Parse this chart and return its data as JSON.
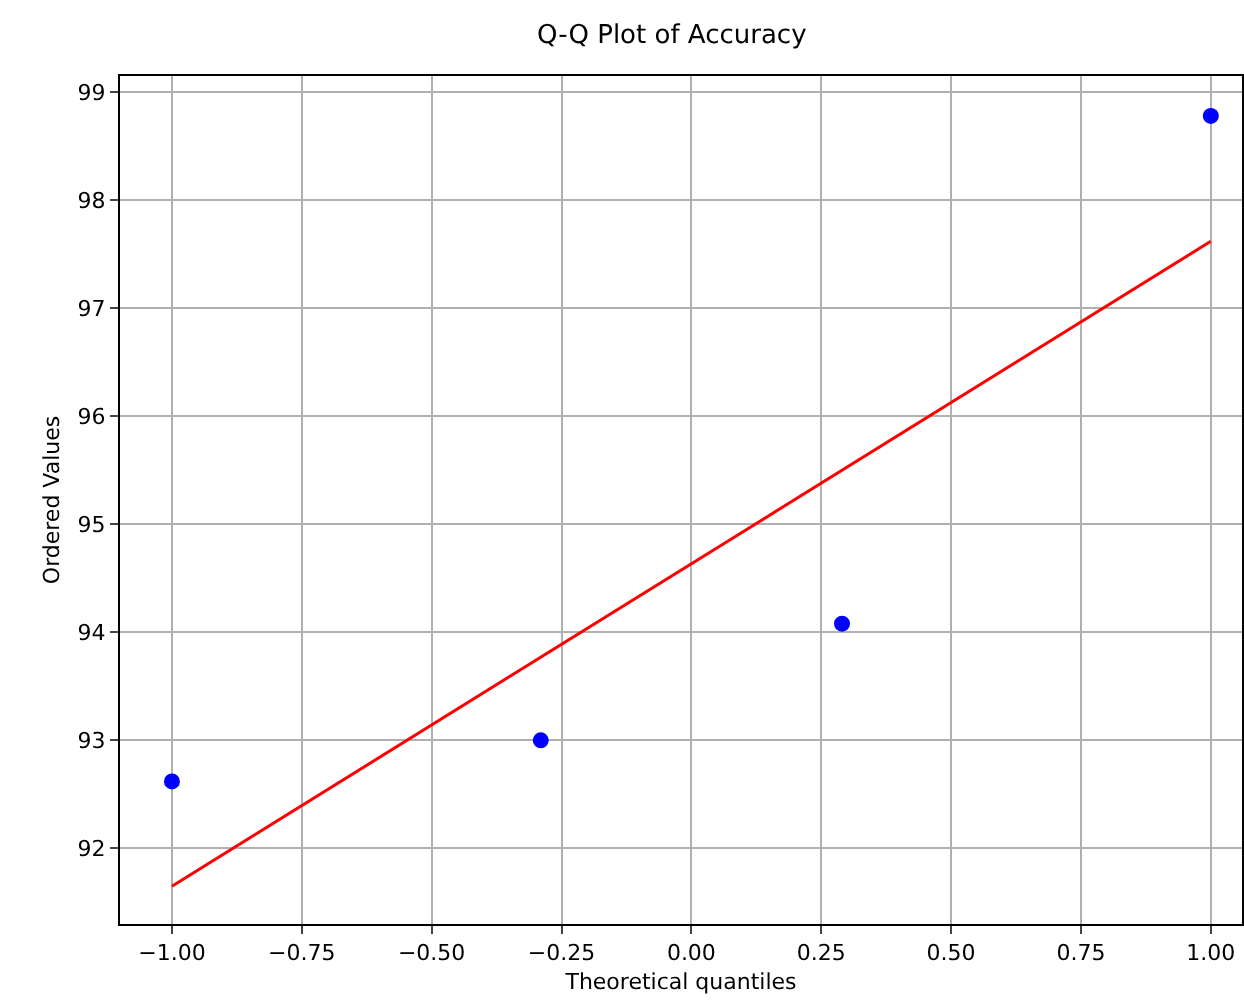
{
  "chart_data": {
    "type": "scatter",
    "title": "Q-Q Plot of Accuracy",
    "xlabel": "Theoretical quantiles",
    "ylabel": "Ordered Values",
    "series": [
      {
        "color": "#0000ff",
        "x": [
          -1.0,
          -0.29,
          0.29,
          1.0
        ],
        "values": [
          92.62,
          93.0,
          94.08,
          98.78
        ],
        "marker": "circle"
      },
      {
        "type": "line",
        "color": "#ff0000",
        "x": [
          -1.0,
          1.0
        ],
        "values": [
          91.65,
          97.62
        ],
        "line_style": "solid"
      }
    ],
    "xlim": [
      -1.1,
      1.06
    ],
    "xticks": [
      {
        "value": -1,
        "label": "−1.00"
      },
      {
        "value": -0.75,
        "label": "−0.75"
      },
      {
        "value": -0.5,
        "label": "−0.50"
      },
      {
        "value": -0.25,
        "label": "−0.25"
      },
      {
        "value": 0,
        "label": "0.00"
      },
      {
        "value": 0.25,
        "label": "0.25"
      },
      {
        "value": 0.5,
        "label": "0.50"
      },
      {
        "value": 0.75,
        "label": "0.75"
      },
      {
        "value": 1,
        "label": "1.00"
      }
    ],
    "ylim": [
      91.3,
      99.15
    ],
    "yticks": [
      92,
      93,
      94,
      95,
      96,
      97,
      98,
      99
    ],
    "grid": true
  }
}
